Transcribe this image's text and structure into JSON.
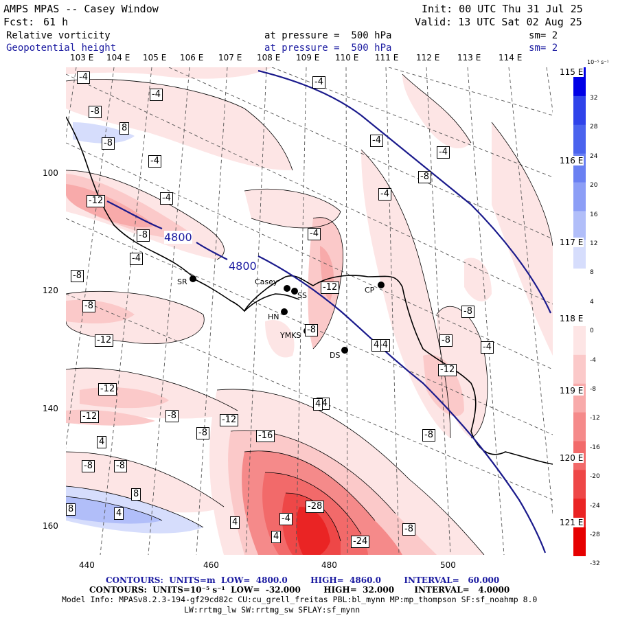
{
  "header": {
    "title": "AMPS MPAS -- Casey Window",
    "forecast_label": "Fcst:",
    "forecast_value": "61 h",
    "init": "Init: 00 UTC Thu 31 Jul 25",
    "valid": "Valid: 13 UTC Sat 02 Aug 25",
    "field1": {
      "name": "Relative vorticity",
      "level": "at pressure =  500 hPa",
      "sm": "sm= 2"
    },
    "field2": {
      "name": "Geopotential height",
      "level": "at pressure =  500 hPa",
      "sm": "sm= 2"
    }
  },
  "longitude_labels": [
    "103 E",
    "104 E",
    "105 E",
    "106 E",
    "107 E",
    "108 E",
    "109 E",
    "110 E",
    "111 E",
    "112 E",
    "113 E",
    "114 E"
  ],
  "latitude_labels": [
    "115 E",
    "116 E",
    "117 E",
    "118 E",
    "119 E",
    "120 E",
    "121 E"
  ],
  "x_ticks": [
    "440",
    "460",
    "480",
    "500"
  ],
  "y_ticks": [
    "100",
    "120",
    "140",
    "160"
  ],
  "stations": [
    {
      "id": "SR",
      "label": "SR"
    },
    {
      "id": "Casey",
      "label": "Casey"
    },
    {
      "id": "SS",
      "label": "SS"
    },
    {
      "id": "HN",
      "label": "HN"
    },
    {
      "id": "YMKS",
      "label": "YMKS"
    },
    {
      "id": "DS",
      "label": "DS"
    },
    {
      "id": "CP",
      "label": "CP"
    }
  ],
  "height_labels": [
    "4800",
    "4800"
  ],
  "vorticity_labels": [
    "-4",
    "-4",
    "-4",
    "-4",
    "-4",
    "-4",
    "-4",
    "-4",
    "-4",
    "-4",
    "-4",
    "-4",
    "-4",
    "-4",
    "-4",
    "-8",
    "-8",
    "-8",
    "-8",
    "-8",
    "-8",
    "-8",
    "-8",
    "-8",
    "-8",
    "-8",
    "-8",
    "-8",
    "-12",
    "-12",
    "-12",
    "-12",
    "-12",
    "-12",
    "-12",
    "-16",
    "-28",
    "-24",
    "4",
    "4",
    "4",
    "4",
    "4",
    "8",
    "8",
    "8",
    "4",
    "-8",
    "-8"
  ],
  "colorbar": {
    "unit_label": "10⁻⁵ s⁻¹",
    "labels": [
      "32",
      "28",
      "24",
      "20",
      "16",
      "12",
      "8",
      "4",
      "0",
      "-4",
      "-8",
      "-12",
      "-16",
      "-20",
      "-24",
      "-28",
      "-32"
    ],
    "colors": [
      "#0000e6",
      "#2f43ea",
      "#4a63ee",
      "#6a80f2",
      "#8c9ef6",
      "#b1bef9",
      "#d6ddfc",
      "#ffffff",
      "#ffffff",
      "#fde5e5",
      "#fbc9c9",
      "#f8aaaa",
      "#f58a8a",
      "#f26a6a",
      "#ee4747",
      "#ea2424",
      "#e60000"
    ]
  },
  "footer": {
    "line1": "CONTOURS:  UNITS=m  LOW=  4800.0        HIGH=  4860.0        INTERVAL=   60.000",
    "line2": "CONTOURS:  UNITS=10⁻⁵ s⁻¹  LOW=  -32.000        HIGH=  32.000       INTERVAL=   4.0000",
    "line3": "Model Info: MPASv8.2.3-194-gf29cd82c CU:cu_grell_freitas PBL:bl_mynn MP:mp_thompson SF:sf_noahmp 8.0",
    "line4": "LW:rrtmg_lw SW:rrtmg_sw SFLAY:sf_mynn"
  }
}
